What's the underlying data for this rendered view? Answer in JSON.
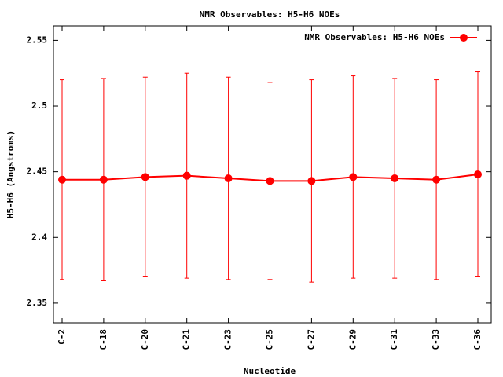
{
  "chart_data": {
    "type": "line",
    "title": "NMR Observables: H5-H6 NOEs",
    "x_label": "Nucleotide",
    "y_label": "H5-H6 (Angstroms)",
    "categories": [
      "C-2",
      "C-18",
      "C-20",
      "C-21",
      "C-23",
      "C-25",
      "C-27",
      "C-29",
      "C-31",
      "C-33",
      "C-36"
    ],
    "series": [
      {
        "name": "NMR Observables: H5-H6 NOEs",
        "color": "#ff0000",
        "values": [
          2.444,
          2.444,
          2.446,
          2.447,
          2.445,
          2.443,
          2.443,
          2.446,
          2.445,
          2.444,
          2.448
        ],
        "errors": [
          0.076,
          0.077,
          0.076,
          0.078,
          0.077,
          0.075,
          0.077,
          0.077,
          0.076,
          0.076,
          0.078
        ]
      }
    ],
    "ylim": [
      2.335,
      2.561
    ],
    "yticks": [
      2.35,
      2.4,
      2.45,
      2.5,
      2.55
    ],
    "legend": "top-right"
  }
}
